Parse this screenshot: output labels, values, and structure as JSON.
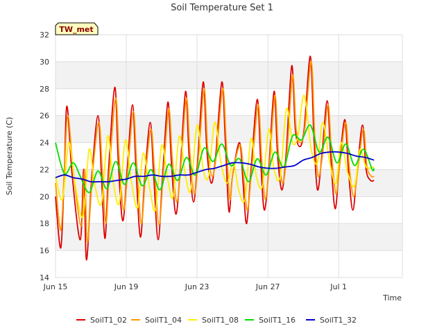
{
  "chart_data": {
    "type": "line",
    "title": "Soil Temperature Set 1",
    "xlabel": "Time",
    "ylabel": "Soil Temperature (C)",
    "badge": "TW_met",
    "xlim": [
      0,
      19.6
    ],
    "ylim": [
      14,
      32
    ],
    "yticks": [
      14,
      16,
      18,
      20,
      22,
      24,
      26,
      28,
      30,
      32
    ],
    "xticks": [
      {
        "x": 0,
        "label": "Jun 15"
      },
      {
        "x": 4,
        "label": "Jun 19"
      },
      {
        "x": 8,
        "label": "Jun 23"
      },
      {
        "x": 12,
        "label": "Jun 27"
      },
      {
        "x": 16,
        "label": "Jul 1"
      }
    ],
    "grid": true,
    "legend_position": "bottom",
    "x_units": "days since Jun 15",
    "series": [
      {
        "name": "SoilT1_02",
        "color": "#dd0000",
        "x": [
          0.0,
          0.3,
          0.5,
          0.65,
          0.95,
          1.4,
          1.6,
          1.75,
          2.05,
          2.4,
          2.6,
          2.8,
          3.0,
          3.35,
          3.55,
          3.8,
          4.05,
          4.35,
          4.55,
          4.8,
          5.05,
          5.35,
          5.55,
          5.8,
          6.05,
          6.35,
          6.55,
          6.8,
          7.05,
          7.35,
          7.55,
          7.8,
          8.05,
          8.35,
          8.55,
          8.8,
          9.05,
          9.4,
          9.6,
          9.8,
          10.0,
          10.4,
          10.6,
          10.8,
          11.05,
          11.4,
          11.6,
          11.8,
          12.05,
          12.35,
          12.55,
          12.8,
          13.05,
          13.35,
          13.55,
          13.8,
          14.05,
          14.4,
          14.6,
          14.8,
          15.05,
          15.35,
          15.55,
          15.8,
          16.05,
          16.35,
          16.55,
          16.8,
          17.05,
          17.35,
          17.55,
          17.8,
          18.0
        ],
        "y": [
          20.0,
          16.2,
          22.0,
          26.7,
          21.5,
          16.8,
          22.0,
          15.3,
          21.5,
          26.0,
          21.5,
          16.9,
          22.0,
          28.1,
          22.5,
          18.2,
          22.0,
          26.8,
          22.0,
          17.0,
          21.5,
          25.5,
          21.5,
          16.8,
          21.5,
          27.0,
          22.5,
          18.7,
          22.0,
          27.8,
          23.0,
          19.6,
          23.0,
          28.5,
          23.5,
          21.0,
          23.0,
          28.5,
          24.0,
          18.9,
          21.5,
          24.0,
          21.0,
          18.0,
          22.0,
          27.2,
          22.5,
          19.0,
          22.0,
          27.8,
          23.0,
          20.5,
          23.5,
          29.7,
          25.0,
          23.7,
          25.0,
          30.4,
          24.5,
          20.5,
          23.0,
          27.1,
          23.0,
          19.1,
          22.5,
          25.7,
          22.0,
          19.0,
          22.0,
          25.3,
          22.0,
          21.2,
          21.2
        ]
      },
      {
        "name": "SoilT1_04",
        "color": "#ff9900",
        "x": [
          0.0,
          0.3,
          0.5,
          0.7,
          1.0,
          1.45,
          1.65,
          1.8,
          2.1,
          2.45,
          2.65,
          2.85,
          3.05,
          3.4,
          3.6,
          3.85,
          4.1,
          4.4,
          4.6,
          4.85,
          5.1,
          5.4,
          5.6,
          5.85,
          6.1,
          6.4,
          6.6,
          6.85,
          7.1,
          7.4,
          7.6,
          7.85,
          8.1,
          8.4,
          8.6,
          8.85,
          9.1,
          9.45,
          9.65,
          9.85,
          10.05,
          10.45,
          10.65,
          10.85,
          11.1,
          11.45,
          11.65,
          11.85,
          12.1,
          12.4,
          12.6,
          12.85,
          13.1,
          13.4,
          13.6,
          13.85,
          14.1,
          14.45,
          14.65,
          14.85,
          15.1,
          15.4,
          15.6,
          15.85,
          16.1,
          16.4,
          16.6,
          16.85,
          17.1,
          17.4,
          17.6,
          17.85,
          18.0
        ],
        "y": [
          21.0,
          17.5,
          22.0,
          26.0,
          22.0,
          17.8,
          22.0,
          16.6,
          21.8,
          25.5,
          21.8,
          18.0,
          22.0,
          27.3,
          22.8,
          19.0,
          22.2,
          26.3,
          22.2,
          18.0,
          21.8,
          25.0,
          21.8,
          17.9,
          21.8,
          26.5,
          22.8,
          19.6,
          22.5,
          27.3,
          23.2,
          20.2,
          23.2,
          28.0,
          23.6,
          21.5,
          23.2,
          28.0,
          24.0,
          19.8,
          22.0,
          23.8,
          21.2,
          19.0,
          22.2,
          26.8,
          22.8,
          19.8,
          22.5,
          27.5,
          23.2,
          21.0,
          23.6,
          29.0,
          25.0,
          24.0,
          25.2,
          30.0,
          24.5,
          21.5,
          23.2,
          26.8,
          23.2,
          20.2,
          22.8,
          25.5,
          22.2,
          20.0,
          22.2,
          25.0,
          22.2,
          21.5,
          21.5
        ]
      },
      {
        "name": "SoilT1_08",
        "color": "#ffee00",
        "x": [
          0.0,
          0.4,
          0.75,
          1.1,
          1.55,
          1.9,
          2.2,
          2.6,
          2.95,
          3.25,
          3.6,
          3.95,
          4.3,
          4.65,
          4.95,
          5.3,
          5.65,
          6.0,
          6.35,
          6.65,
          7.0,
          7.35,
          7.65,
          8.0,
          8.35,
          8.65,
          9.0,
          9.35,
          9.7,
          10.05,
          10.35,
          10.7,
          11.05,
          11.35,
          11.7,
          12.05,
          12.35,
          12.7,
          13.05,
          13.4,
          13.7,
          14.05,
          14.45,
          14.8,
          15.1,
          15.5,
          15.85,
          16.15,
          16.5,
          16.9,
          17.2,
          17.55,
          18.0
        ],
        "y": [
          21.5,
          19.8,
          24.0,
          21.0,
          18.5,
          23.5,
          21.0,
          19.5,
          24.5,
          21.2,
          19.5,
          24.2,
          21.0,
          19.2,
          23.2,
          20.8,
          19.0,
          23.8,
          21.2,
          20.0,
          24.5,
          21.5,
          20.5,
          25.3,
          22.0,
          21.5,
          25.5,
          22.5,
          21.0,
          22.5,
          20.5,
          19.8,
          24.3,
          21.5,
          20.8,
          25.0,
          22.0,
          21.5,
          26.5,
          24.0,
          24.5,
          27.5,
          23.5,
          22.5,
          25.5,
          22.5,
          21.0,
          24.0,
          21.8,
          20.8,
          23.5,
          22.2,
          22.2
        ]
      },
      {
        "name": "SoilT1_16",
        "color": "#00dd00",
        "x": [
          0.0,
          0.5,
          1.0,
          1.4,
          1.9,
          2.4,
          2.9,
          3.4,
          3.9,
          4.4,
          4.9,
          5.4,
          5.9,
          6.4,
          6.9,
          7.4,
          7.9,
          8.4,
          8.9,
          9.4,
          9.9,
          10.4,
          10.9,
          11.4,
          11.9,
          12.4,
          12.9,
          13.4,
          13.9,
          14.4,
          14.9,
          15.4,
          15.9,
          16.4,
          16.9,
          17.4,
          17.9,
          18.0
        ],
        "y": [
          24.0,
          21.7,
          22.5,
          21.5,
          20.3,
          21.9,
          20.6,
          22.6,
          20.9,
          22.5,
          20.8,
          22.0,
          20.5,
          22.4,
          21.2,
          22.9,
          21.6,
          23.6,
          22.6,
          23.9,
          22.3,
          22.8,
          21.1,
          22.8,
          21.6,
          23.3,
          22.2,
          24.5,
          24.2,
          25.3,
          23.3,
          24.4,
          22.5,
          23.9,
          22.3,
          23.5,
          22.0,
          22.1
        ]
      },
      {
        "name": "SoilT1_32",
        "color": "#0000cc",
        "x": [
          0.0,
          0.5,
          1.0,
          1.5,
          2.0,
          2.5,
          3.0,
          3.5,
          4.0,
          4.5,
          5.0,
          5.5,
          6.0,
          6.5,
          7.0,
          7.5,
          8.0,
          8.5,
          9.0,
          9.5,
          10.0,
          10.5,
          11.0,
          11.5,
          12.0,
          12.5,
          13.0,
          13.5,
          14.0,
          14.5,
          15.0,
          15.5,
          16.0,
          16.5,
          17.0,
          17.5,
          18.0
        ],
        "y": [
          21.4,
          21.6,
          21.4,
          21.3,
          21.1,
          21.1,
          21.1,
          21.2,
          21.3,
          21.5,
          21.5,
          21.6,
          21.5,
          21.5,
          21.6,
          21.6,
          21.8,
          22.0,
          22.1,
          22.3,
          22.5,
          22.5,
          22.4,
          22.2,
          22.1,
          22.1,
          22.2,
          22.3,
          22.7,
          22.9,
          23.2,
          23.3,
          23.3,
          23.2,
          23.0,
          22.9,
          22.7
        ]
      }
    ]
  }
}
